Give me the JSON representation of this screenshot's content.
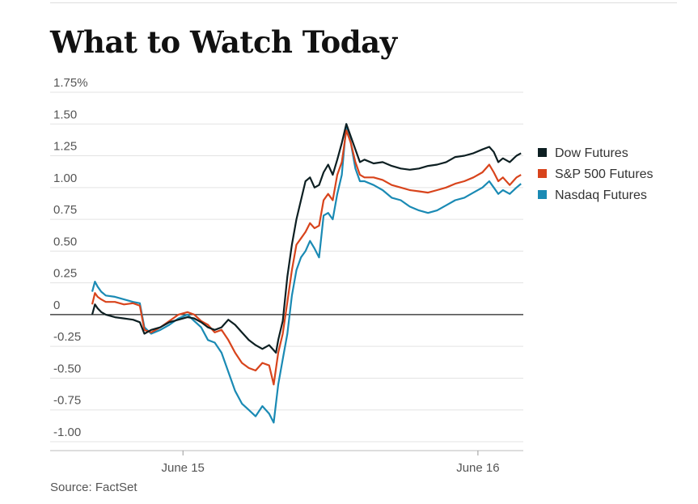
{
  "header": {
    "title": "What to Watch Today"
  },
  "footer": {
    "source": "Source: FactSet"
  },
  "chart_data": {
    "type": "line",
    "y_tick_labels": [
      "1.75%",
      "1.50",
      "1.25",
      "1.00",
      "0.75",
      "0.50",
      "0.25",
      "0",
      "-0.25",
      "-0.50",
      "-0.75",
      "-1.00"
    ],
    "y_tick_values": [
      1.75,
      1.5,
      1.25,
      1.0,
      0.75,
      0.5,
      0.25,
      0,
      -0.25,
      -0.5,
      -0.75,
      -1.0
    ],
    "ylim": [
      -1.0,
      1.75
    ],
    "x_tick_labels": [
      "June 15",
      "June 16"
    ],
    "x_tick_positions": [
      0.2,
      0.85
    ],
    "xlim": [
      0,
      0.95
    ],
    "legend_position": "right",
    "grid": true,
    "series": [
      {
        "name": "Dow Futures",
        "color": "#0d1f22",
        "points": [
          [
            0,
            0.0
          ],
          [
            0.006,
            0.08
          ],
          [
            0.012,
            0.05
          ],
          [
            0.02,
            0.02
          ],
          [
            0.03,
            0.0
          ],
          [
            0.05,
            -0.02
          ],
          [
            0.07,
            -0.03
          ],
          [
            0.09,
            -0.04
          ],
          [
            0.105,
            -0.06
          ],
          [
            0.115,
            -0.15
          ],
          [
            0.13,
            -0.12
          ],
          [
            0.15,
            -0.1
          ],
          [
            0.17,
            -0.06
          ],
          [
            0.19,
            -0.04
          ],
          [
            0.21,
            -0.02
          ],
          [
            0.225,
            -0.03
          ],
          [
            0.24,
            -0.06
          ],
          [
            0.255,
            -0.1
          ],
          [
            0.27,
            -0.12
          ],
          [
            0.285,
            -0.1
          ],
          [
            0.3,
            -0.04
          ],
          [
            0.315,
            -0.08
          ],
          [
            0.33,
            -0.14
          ],
          [
            0.345,
            -0.2
          ],
          [
            0.36,
            -0.24
          ],
          [
            0.375,
            -0.27
          ],
          [
            0.39,
            -0.24
          ],
          [
            0.405,
            -0.3
          ],
          [
            0.41,
            -0.2
          ],
          [
            0.42,
            -0.05
          ],
          [
            0.43,
            0.3
          ],
          [
            0.44,
            0.55
          ],
          [
            0.45,
            0.75
          ],
          [
            0.46,
            0.9
          ],
          [
            0.47,
            1.05
          ],
          [
            0.48,
            1.08
          ],
          [
            0.49,
            1.0
          ],
          [
            0.5,
            1.02
          ],
          [
            0.51,
            1.12
          ],
          [
            0.52,
            1.18
          ],
          [
            0.53,
            1.1
          ],
          [
            0.54,
            1.22
          ],
          [
            0.55,
            1.35
          ],
          [
            0.56,
            1.5
          ],
          [
            0.57,
            1.4
          ],
          [
            0.58,
            1.3
          ],
          [
            0.59,
            1.2
          ],
          [
            0.6,
            1.22
          ],
          [
            0.62,
            1.19
          ],
          [
            0.64,
            1.2
          ],
          [
            0.66,
            1.17
          ],
          [
            0.68,
            1.15
          ],
          [
            0.7,
            1.14
          ],
          [
            0.72,
            1.15
          ],
          [
            0.74,
            1.17
          ],
          [
            0.76,
            1.18
          ],
          [
            0.78,
            1.2
          ],
          [
            0.8,
            1.24
          ],
          [
            0.82,
            1.25
          ],
          [
            0.84,
            1.27
          ],
          [
            0.86,
            1.3
          ],
          [
            0.875,
            1.32
          ],
          [
            0.885,
            1.28
          ],
          [
            0.895,
            1.2
          ],
          [
            0.905,
            1.23
          ],
          [
            0.92,
            1.2
          ],
          [
            0.935,
            1.25
          ],
          [
            0.945,
            1.27
          ]
        ]
      },
      {
        "name": "S&P 500 Futures",
        "color": "#d8441c",
        "points": [
          [
            0,
            0.08
          ],
          [
            0.006,
            0.17
          ],
          [
            0.012,
            0.14
          ],
          [
            0.02,
            0.12
          ],
          [
            0.03,
            0.1
          ],
          [
            0.05,
            0.1
          ],
          [
            0.07,
            0.08
          ],
          [
            0.09,
            0.09
          ],
          [
            0.105,
            0.07
          ],
          [
            0.115,
            -0.12
          ],
          [
            0.13,
            -0.14
          ],
          [
            0.15,
            -0.1
          ],
          [
            0.17,
            -0.05
          ],
          [
            0.19,
            0.0
          ],
          [
            0.21,
            0.02
          ],
          [
            0.225,
            0.0
          ],
          [
            0.24,
            -0.05
          ],
          [
            0.255,
            -0.08
          ],
          [
            0.27,
            -0.14
          ],
          [
            0.285,
            -0.12
          ],
          [
            0.3,
            -0.2
          ],
          [
            0.315,
            -0.3
          ],
          [
            0.33,
            -0.38
          ],
          [
            0.345,
            -0.42
          ],
          [
            0.36,
            -0.44
          ],
          [
            0.375,
            -0.38
          ],
          [
            0.39,
            -0.4
          ],
          [
            0.4,
            -0.55
          ],
          [
            0.41,
            -0.3
          ],
          [
            0.42,
            -0.15
          ],
          [
            0.43,
            0.1
          ],
          [
            0.44,
            0.35
          ],
          [
            0.45,
            0.55
          ],
          [
            0.46,
            0.6
          ],
          [
            0.47,
            0.65
          ],
          [
            0.48,
            0.72
          ],
          [
            0.49,
            0.68
          ],
          [
            0.5,
            0.7
          ],
          [
            0.51,
            0.9
          ],
          [
            0.52,
            0.95
          ],
          [
            0.53,
            0.9
          ],
          [
            0.54,
            1.1
          ],
          [
            0.55,
            1.2
          ],
          [
            0.56,
            1.45
          ],
          [
            0.57,
            1.35
          ],
          [
            0.58,
            1.2
          ],
          [
            0.59,
            1.1
          ],
          [
            0.6,
            1.08
          ],
          [
            0.62,
            1.08
          ],
          [
            0.64,
            1.06
          ],
          [
            0.66,
            1.02
          ],
          [
            0.68,
            1.0
          ],
          [
            0.7,
            0.98
          ],
          [
            0.72,
            0.97
          ],
          [
            0.74,
            0.96
          ],
          [
            0.76,
            0.98
          ],
          [
            0.78,
            1.0
          ],
          [
            0.8,
            1.03
          ],
          [
            0.82,
            1.05
          ],
          [
            0.84,
            1.08
          ],
          [
            0.86,
            1.12
          ],
          [
            0.875,
            1.18
          ],
          [
            0.885,
            1.12
          ],
          [
            0.895,
            1.05
          ],
          [
            0.905,
            1.08
          ],
          [
            0.92,
            1.02
          ],
          [
            0.935,
            1.08
          ],
          [
            0.945,
            1.1
          ]
        ]
      },
      {
        "name": "Nasdaq Futures",
        "color": "#1a8ab4",
        "points": [
          [
            0,
            0.18
          ],
          [
            0.006,
            0.26
          ],
          [
            0.012,
            0.22
          ],
          [
            0.02,
            0.18
          ],
          [
            0.03,
            0.15
          ],
          [
            0.05,
            0.14
          ],
          [
            0.07,
            0.12
          ],
          [
            0.09,
            0.1
          ],
          [
            0.105,
            0.09
          ],
          [
            0.115,
            -0.1
          ],
          [
            0.13,
            -0.15
          ],
          [
            0.15,
            -0.12
          ],
          [
            0.17,
            -0.08
          ],
          [
            0.19,
            -0.03
          ],
          [
            0.21,
            0.0
          ],
          [
            0.225,
            -0.05
          ],
          [
            0.24,
            -0.1
          ],
          [
            0.255,
            -0.2
          ],
          [
            0.27,
            -0.22
          ],
          [
            0.285,
            -0.3
          ],
          [
            0.3,
            -0.45
          ],
          [
            0.315,
            -0.6
          ],
          [
            0.33,
            -0.7
          ],
          [
            0.345,
            -0.75
          ],
          [
            0.36,
            -0.8
          ],
          [
            0.375,
            -0.72
          ],
          [
            0.39,
            -0.78
          ],
          [
            0.4,
            -0.85
          ],
          [
            0.41,
            -0.55
          ],
          [
            0.42,
            -0.35
          ],
          [
            0.43,
            -0.15
          ],
          [
            0.44,
            0.15
          ],
          [
            0.45,
            0.35
          ],
          [
            0.46,
            0.45
          ],
          [
            0.47,
            0.5
          ],
          [
            0.48,
            0.58
          ],
          [
            0.49,
            0.52
          ],
          [
            0.5,
            0.45
          ],
          [
            0.51,
            0.78
          ],
          [
            0.52,
            0.8
          ],
          [
            0.53,
            0.75
          ],
          [
            0.54,
            0.95
          ],
          [
            0.55,
            1.1
          ],
          [
            0.56,
            1.5
          ],
          [
            0.57,
            1.35
          ],
          [
            0.58,
            1.15
          ],
          [
            0.59,
            1.05
          ],
          [
            0.6,
            1.05
          ],
          [
            0.62,
            1.02
          ],
          [
            0.64,
            0.98
          ],
          [
            0.66,
            0.92
          ],
          [
            0.68,
            0.9
          ],
          [
            0.7,
            0.85
          ],
          [
            0.72,
            0.82
          ],
          [
            0.74,
            0.8
          ],
          [
            0.76,
            0.82
          ],
          [
            0.78,
            0.86
          ],
          [
            0.8,
            0.9
          ],
          [
            0.82,
            0.92
          ],
          [
            0.84,
            0.96
          ],
          [
            0.86,
            1.0
          ],
          [
            0.875,
            1.05
          ],
          [
            0.885,
            1.0
          ],
          [
            0.895,
            0.95
          ],
          [
            0.905,
            0.98
          ],
          [
            0.92,
            0.95
          ],
          [
            0.935,
            1.0
          ],
          [
            0.945,
            1.03
          ]
        ]
      }
    ]
  }
}
